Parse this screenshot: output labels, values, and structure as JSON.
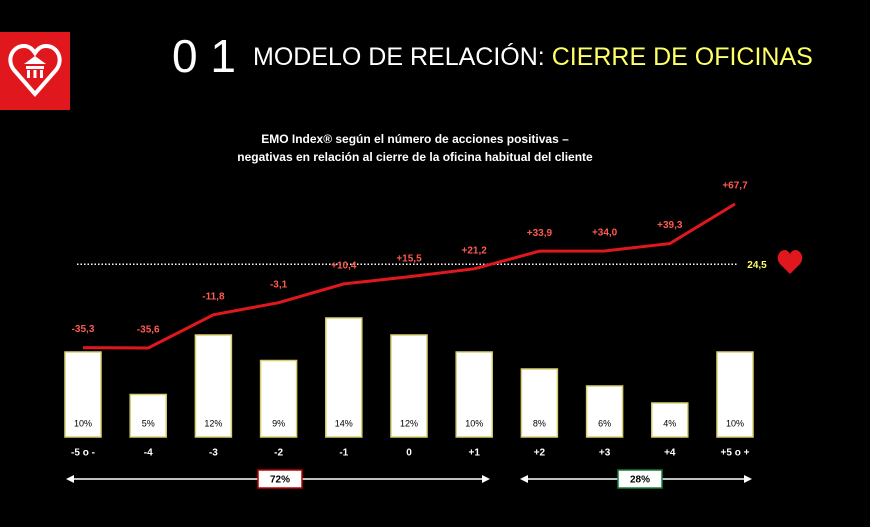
{
  "header": {
    "number": "0 1",
    "title": "MODELO DE RELACIÓN:",
    "highlight": "CIERRE DE OFICINAS"
  },
  "chart_data": {
    "type": "bar_line",
    "title_lines": [
      "EMO Index® según el número de acciones positivas –",
      "negativas en relación al cierre de la oficina habitual del cliente"
    ],
    "categories": [
      "-5 o -",
      "-4",
      "-3",
      "-2",
      "-1",
      "0",
      "+1",
      "+2",
      "+3",
      "+4",
      "+5 o +"
    ],
    "series": [
      {
        "type": "bar",
        "color": "#ffffff",
        "values": [
          10,
          5,
          12,
          9,
          14,
          12,
          10,
          8,
          6,
          4,
          10
        ],
        "value_labels": [
          "10%",
          "5%",
          "12%",
          "9%",
          "14%",
          "12%",
          "10%",
          "8%",
          "6%",
          "4%",
          "10%"
        ]
      },
      {
        "type": "line",
        "axis": "y2",
        "color": "#e0181e",
        "values": [
          -35.3,
          -35.6,
          -11.8,
          -3.1,
          10.4,
          15.5,
          21.2,
          33.9,
          34.0,
          39.3,
          67.7
        ],
        "value_labels": [
          "-35,3",
          "-35,6",
          "-11,8",
          "-3,1",
          "+10,4",
          "+15,5",
          "+21,2",
          "+33,9",
          "+34,0",
          "+39,3",
          "+67,7"
        ]
      }
    ],
    "reference": {
      "value": 24.5,
      "label": "24,5",
      "color": "#ffff66"
    },
    "groups": [
      {
        "label": "72%",
        "color": "#c00000"
      },
      {
        "label": "28%",
        "color": "#1a7a3a"
      }
    ]
  }
}
